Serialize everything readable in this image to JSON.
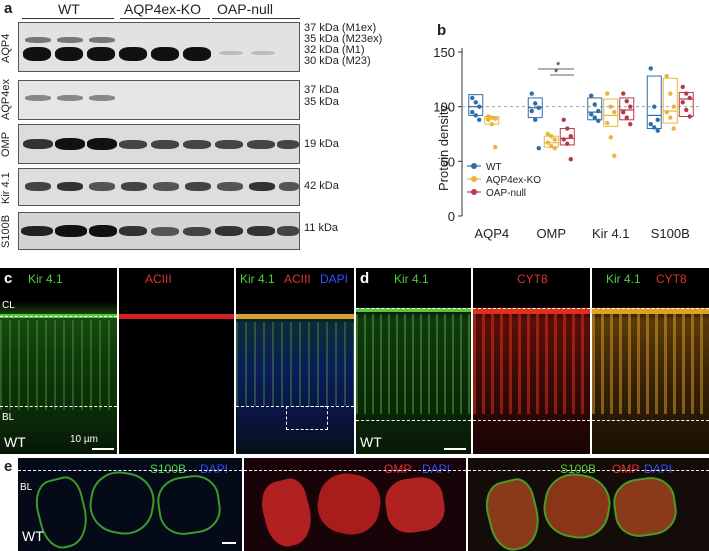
{
  "panel_a": {
    "letter": "a",
    "groups": [
      "WT",
      "AQP4ex-KO",
      "OAP-null"
    ],
    "rows": [
      {
        "name": "AQP4",
        "markers": [
          "37 kDa (M1ex)",
          "35 kDa (M23ex)",
          "32 kDa (M1)",
          "30 kDa (M23)"
        ]
      },
      {
        "name": "AQP4ex",
        "markers": [
          "37 kDa",
          "35 kDa"
        ]
      },
      {
        "name": "OMP",
        "markers": [
          "19 kDa"
        ]
      },
      {
        "name": "Kir 4.1",
        "markers": [
          "42 kDa"
        ]
      },
      {
        "name": "S100B",
        "markers": [
          "11 kDa"
        ]
      }
    ]
  },
  "panel_b": {
    "letter": "b",
    "ylabel": "Protein density",
    "categories": [
      "AQP4",
      "OMP",
      "Kir 4.1",
      "S100B"
    ],
    "legend": [
      "WT",
      "AQP4ex-KO",
      "OAP-null"
    ],
    "colors": {
      "WT": "#2f6ea8",
      "AQP4ex-KO": "#e8b43a",
      "OAP-null": "#b83a4a"
    },
    "significance": [
      "*",
      "*"
    ]
  },
  "chart_data": {
    "type": "box",
    "ylabel": "Protein density",
    "categories": [
      "AQP4",
      "OMP",
      "Kir 4.1",
      "S100B"
    ],
    "ylim": [
      0,
      150
    ],
    "yticks": [
      0,
      50,
      100,
      150
    ],
    "reference_line": 100,
    "series": [
      {
        "name": "WT",
        "color": "#2f6ea8",
        "boxes": [
          [
            92,
            100,
            111
          ],
          [
            90,
            99,
            108
          ],
          [
            88,
            95,
            108
          ],
          [
            80,
            92,
            128
          ]
        ],
        "points": [
          [
            108,
            104,
            100,
            95,
            92,
            88
          ],
          [
            112,
            103,
            99,
            96,
            88,
            62
          ],
          [
            110,
            102,
            96,
            93,
            90,
            87
          ],
          [
            135,
            100,
            88,
            84,
            81,
            78
          ]
        ]
      },
      {
        "name": "AQP4ex-KO",
        "color": "#e8b43a",
        "boxes": [
          [
            84,
            89,
            91
          ],
          [
            63,
            67,
            73
          ],
          [
            82,
            92,
            107
          ],
          [
            85,
            96,
            126
          ]
        ],
        "points": [
          [
            91,
            90,
            89,
            88,
            84,
            63
          ],
          [
            75,
            73,
            70,
            67,
            64,
            62
          ],
          [
            112,
            100,
            95,
            85,
            72,
            55
          ],
          [
            128,
            112,
            100,
            95,
            90,
            80
          ]
        ]
      },
      {
        "name": "OAP-null",
        "color": "#b83a4a",
        "boxes": [
          [],
          [
            65,
            71,
            80
          ],
          [
            88,
            97,
            108
          ],
          [
            91,
            107,
            113
          ]
        ],
        "points": [
          [],
          [
            88,
            80,
            73,
            70,
            66,
            52
          ],
          [
            112,
            105,
            100,
            95,
            90,
            84
          ],
          [
            118,
            112,
            108,
            104,
            97,
            91
          ]
        ]
      }
    ]
  },
  "panel_c": {
    "letter": "c",
    "labels": [
      "Kir 4.1",
      "ACIII",
      "Kir 4.1",
      "ACIII",
      "DAPI"
    ],
    "cl": "CL",
    "bl": "BL",
    "wt": "WT",
    "scale": "10 µm"
  },
  "panel_d": {
    "letter": "d",
    "labels": [
      "Kir 4.1",
      "CYT8",
      "Kir 4.1",
      "CYT8"
    ],
    "wt": "WT"
  },
  "panel_e": {
    "letter": "e",
    "labels": [
      "S100B",
      "DAPI",
      "OMP",
      "DAPI",
      "S100B",
      "OMP",
      "DAPI"
    ],
    "bl": "BL",
    "wt": "WT"
  }
}
